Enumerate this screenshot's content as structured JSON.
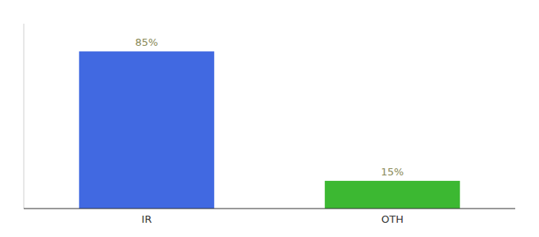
{
  "chart_data": {
    "type": "bar",
    "categories": [
      "IR",
      "OTH"
    ],
    "values": [
      85,
      15
    ],
    "value_labels": [
      "85%",
      "15%"
    ],
    "colors": [
      "#4169E1",
      "#3CB832"
    ],
    "ylim": [
      0,
      100
    ],
    "data_labels": true,
    "tick_labels": "x",
    "grid": false
  }
}
